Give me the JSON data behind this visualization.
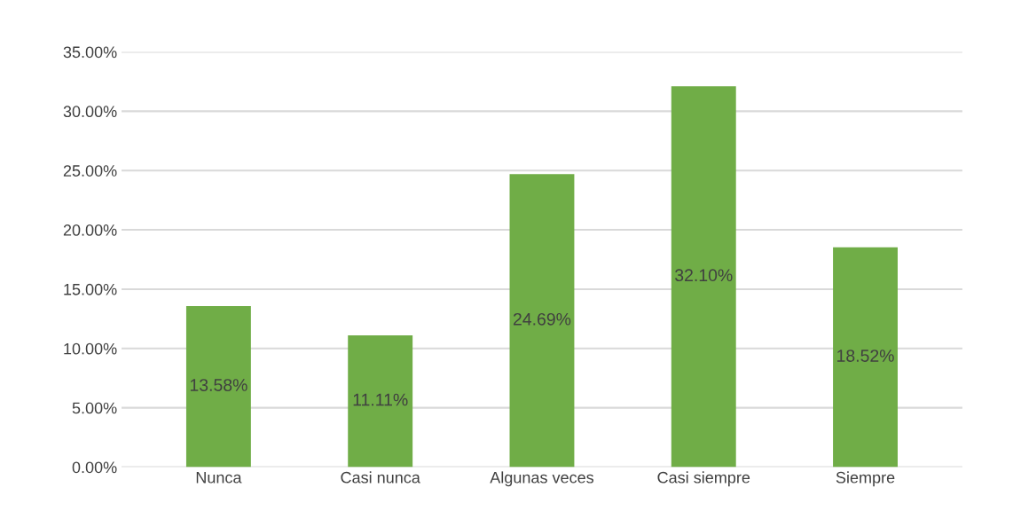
{
  "chart_data": {
    "type": "bar",
    "categories": [
      "Nunca",
      "Casi nunca",
      "Algunas veces",
      "Casi siempre",
      "Siempre"
    ],
    "values": [
      13.58,
      11.11,
      24.69,
      32.1,
      18.52
    ],
    "value_labels": [
      "13.58%",
      "11.11%",
      "24.69%",
      "32.10%",
      "18.52%"
    ],
    "color": "#70ad47",
    "ylim": [
      0,
      35
    ],
    "yticks": [
      {
        "value": 0,
        "label": "0.00%"
      },
      {
        "value": 5,
        "label": "5.00%"
      },
      {
        "value": 10,
        "label": "10.00%"
      },
      {
        "value": 15,
        "label": "15.00%"
      },
      {
        "value": 20,
        "label": "20.00%"
      },
      {
        "value": 25,
        "label": "25.00%"
      },
      {
        "value": 30,
        "label": "30.00%"
      },
      {
        "value": 35,
        "label": "35.00%"
      }
    ],
    "grid": "y"
  }
}
